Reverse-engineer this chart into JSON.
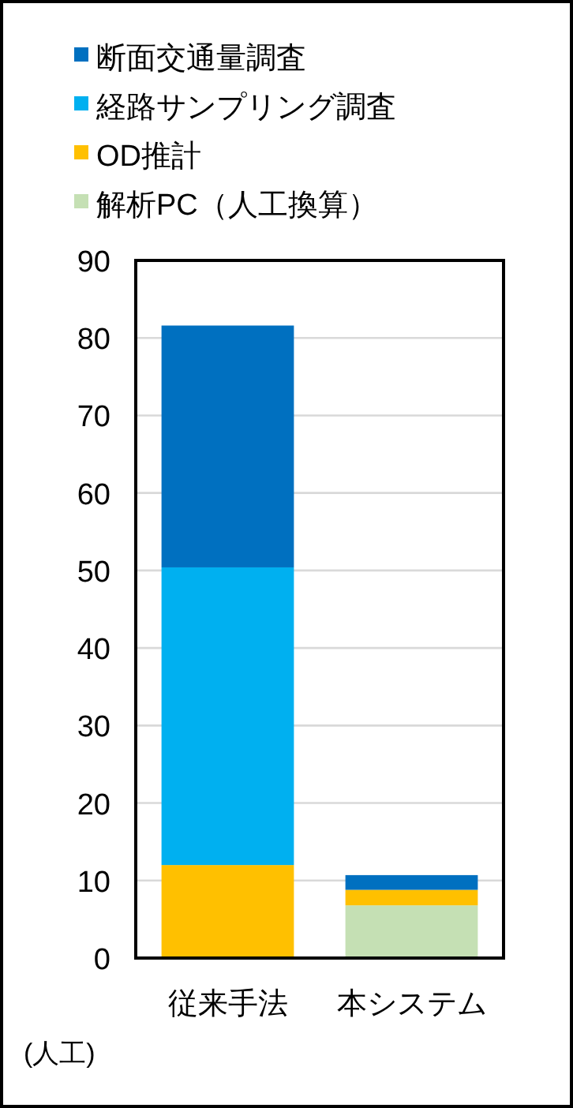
{
  "chart_data": {
    "type": "bar",
    "stacked": true,
    "categories": [
      "従来手法",
      "本システム"
    ],
    "series": [
      {
        "name": "解析PC（人工換算）",
        "color": "#c5e0b4",
        "values": [
          null,
          6.8
        ]
      },
      {
        "name": "OD推計",
        "color": "#ffc000",
        "values": [
          12,
          2
        ]
      },
      {
        "name": "経路サンプリング調査",
        "color": "#00b0f0",
        "values": [
          38.4,
          null
        ]
      },
      {
        "name": "断面交通量調査",
        "color": "#0070c0",
        "values": [
          31.2,
          1.9
        ]
      }
    ],
    "ylim": [
      0,
      90
    ],
    "yticks": [
      0,
      10,
      20,
      30,
      40,
      50,
      60,
      70,
      80,
      90
    ],
    "grid": "y",
    "legend": "top",
    "ylabel": "(人工)"
  }
}
